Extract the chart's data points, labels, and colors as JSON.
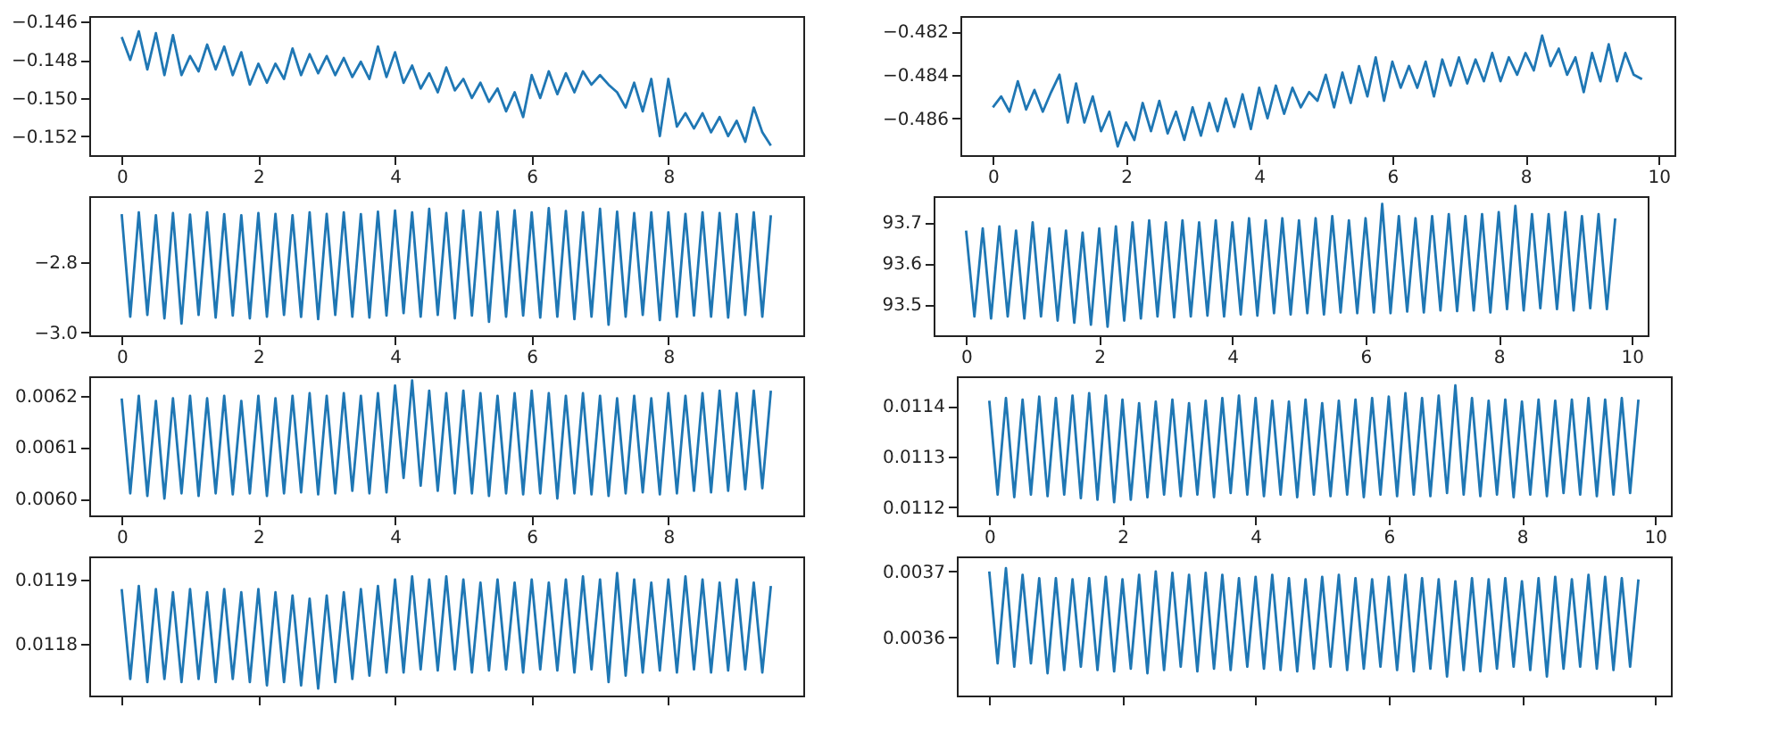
{
  "chart_data": [
    {
      "type": "line",
      "x": [
        0,
        0.125,
        0.25,
        0.375,
        0.5,
        0.625,
        0.75,
        0.875,
        1,
        1.125,
        1.25,
        1.375,
        1.5,
        1.625,
        1.75,
        1.875,
        2,
        2.125,
        2.25,
        2.375,
        2.5,
        2.625,
        2.75,
        2.875,
        3,
        3.125,
        3.25,
        3.375,
        3.5,
        3.625,
        3.75,
        3.875,
        4,
        4.125,
        4.25,
        4.375,
        4.5,
        4.625,
        4.75,
        4.875,
        5,
        5.125,
        5.25,
        5.375,
        5.5,
        5.625,
        5.75,
        5.875,
        6,
        6.125,
        6.25,
        6.375,
        6.5,
        6.625,
        6.75,
        6.875,
        7,
        7.125,
        7.25,
        7.375,
        7.5,
        7.625,
        7.75,
        7.875,
        8,
        8.125,
        8.25,
        8.375,
        8.5,
        8.625,
        8.75,
        8.875,
        9,
        9.125,
        9.25,
        9.375,
        9.5
      ],
      "series": [
        {
          "color": "#1f77b4",
          "values": [
            -0.1468,
            -0.148,
            -0.1465,
            -0.1485,
            -0.1466,
            -0.1488,
            -0.1467,
            -0.1488,
            -0.1478,
            -0.1486,
            -0.1472,
            -0.1485,
            -0.1473,
            -0.1488,
            -0.1476,
            -0.1493,
            -0.1482,
            -0.1492,
            -0.1482,
            -0.149,
            -0.1474,
            -0.1488,
            -0.1477,
            -0.1487,
            -0.1478,
            -0.1488,
            -0.1479,
            -0.1489,
            -0.1481,
            -0.149,
            -0.1473,
            -0.1489,
            -0.1476,
            -0.1492,
            -0.1483,
            -0.1495,
            -0.1487,
            -0.1497,
            -0.1484,
            -0.1496,
            -0.149,
            -0.15,
            -0.1492,
            -0.1502,
            -0.1495,
            -0.1507,
            -0.1497,
            -0.151,
            -0.1488,
            -0.15,
            -0.1486,
            -0.1498,
            -0.1487,
            -0.1497,
            -0.1486,
            -0.1493,
            -0.1488,
            -0.1493,
            -0.1497,
            -0.1505,
            -0.1492,
            -0.1507,
            -0.149,
            -0.152,
            -0.149,
            -0.1515,
            -0.1508,
            -0.1516,
            -0.1508,
            -0.1518,
            -0.151,
            -0.152,
            -0.1512,
            -0.1523,
            -0.1505,
            -0.1518,
            -0.1525
          ]
        }
      ],
      "xlim": [
        -0.475,
        9.975
      ],
      "ylim": [
        -0.153,
        -0.1457
      ],
      "xticks": [
        0,
        2,
        4,
        6,
        8
      ],
      "yticks": [
        {
          "value": -0.146,
          "label": "−0.146"
        },
        {
          "value": -0.148,
          "label": "−0.148"
        },
        {
          "value": -0.15,
          "label": "−0.150"
        },
        {
          "value": -0.152,
          "label": "−0.152"
        }
      ]
    },
    {
      "type": "line",
      "x": [
        0,
        0.125,
        0.25,
        0.375,
        0.5,
        0.625,
        0.75,
        0.875,
        1,
        1.125,
        1.25,
        1.375,
        1.5,
        1.625,
        1.75,
        1.875,
        2,
        2.125,
        2.25,
        2.375,
        2.5,
        2.625,
        2.75,
        2.875,
        3,
        3.125,
        3.25,
        3.375,
        3.5,
        3.625,
        3.75,
        3.875,
        4,
        4.125,
        4.25,
        4.375,
        4.5,
        4.625,
        4.75,
        4.875,
        5,
        5.125,
        5.25,
        5.375,
        5.5,
        5.625,
        5.75,
        5.875,
        6,
        6.125,
        6.25,
        6.375,
        6.5,
        6.625,
        6.75,
        6.875,
        7,
        7.125,
        7.25,
        7.375,
        7.5,
        7.625,
        7.75,
        7.875,
        8,
        8.125,
        8.25,
        8.375,
        8.5,
        8.625,
        8.75,
        8.875,
        9,
        9.125,
        9.25,
        9.375,
        9.5,
        9.625,
        9.75
      ],
      "series": [
        {
          "color": "#1f77b4",
          "values": [
            -0.4855,
            -0.485,
            -0.4857,
            -0.4843,
            -0.4856,
            -0.4847,
            -0.4857,
            -0.4848,
            -0.484,
            -0.4862,
            -0.4844,
            -0.4862,
            -0.485,
            -0.4866,
            -0.4857,
            -0.4873,
            -0.4862,
            -0.487,
            -0.4853,
            -0.4866,
            -0.4852,
            -0.4867,
            -0.4857,
            -0.487,
            -0.4855,
            -0.4868,
            -0.4853,
            -0.4866,
            -0.4851,
            -0.4864,
            -0.4849,
            -0.4865,
            -0.4846,
            -0.486,
            -0.4845,
            -0.4858,
            -0.4846,
            -0.4855,
            -0.4848,
            -0.4852,
            -0.484,
            -0.4855,
            -0.4839,
            -0.4853,
            -0.4836,
            -0.485,
            -0.4832,
            -0.4852,
            -0.4834,
            -0.4846,
            -0.4836,
            -0.4846,
            -0.4834,
            -0.485,
            -0.4833,
            -0.4845,
            -0.4832,
            -0.4844,
            -0.4833,
            -0.4843,
            -0.483,
            -0.4843,
            -0.4832,
            -0.484,
            -0.483,
            -0.4838,
            -0.4822,
            -0.4836,
            -0.4828,
            -0.484,
            -0.4832,
            -0.4848,
            -0.483,
            -0.4843,
            -0.4826,
            -0.4843,
            -0.483,
            -0.484,
            -0.4842
          ]
        }
      ],
      "xlim": [
        -0.4875,
        10.2375
      ],
      "ylim": [
        -0.4877,
        -0.4813
      ],
      "xticks": [
        0,
        2,
        4,
        6,
        8,
        10
      ],
      "yticks": [
        {
          "value": -0.482,
          "label": "−0.482"
        },
        {
          "value": -0.484,
          "label": "−0.484"
        },
        {
          "value": -0.486,
          "label": "−0.486"
        }
      ]
    },
    {
      "type": "line",
      "x": [
        0,
        0.125,
        0.25,
        0.375,
        0.5,
        0.625,
        0.75,
        0.875,
        1,
        1.125,
        1.25,
        1.375,
        1.5,
        1.625,
        1.75,
        1.875,
        2,
        2.125,
        2.25,
        2.375,
        2.5,
        2.625,
        2.75,
        2.875,
        3,
        3.125,
        3.25,
        3.375,
        3.5,
        3.625,
        3.75,
        3.875,
        4,
        4.125,
        4.25,
        4.375,
        4.5,
        4.625,
        4.75,
        4.875,
        5,
        5.125,
        5.25,
        5.375,
        5.5,
        5.625,
        5.75,
        5.875,
        6,
        6.125,
        6.25,
        6.375,
        6.5,
        6.625,
        6.75,
        6.875,
        7,
        7.125,
        7.25,
        7.375,
        7.5,
        7.625,
        7.75,
        7.875,
        8,
        8.125,
        8.25,
        8.375,
        8.5,
        8.625,
        8.75,
        8.875,
        9,
        9.125,
        9.25,
        9.375,
        9.5
      ],
      "series": [
        {
          "color": "#1f77b4",
          "values": [
            -2.665,
            -2.955,
            -2.66,
            -2.95,
            -2.668,
            -2.96,
            -2.662,
            -2.975,
            -2.666,
            -2.95,
            -2.66,
            -2.958,
            -2.665,
            -2.952,
            -2.668,
            -2.96,
            -2.662,
            -2.955,
            -2.664,
            -2.95,
            -2.668,
            -2.956,
            -2.66,
            -2.962,
            -2.664,
            -2.95,
            -2.66,
            -2.955,
            -2.665,
            -2.958,
            -2.658,
            -2.952,
            -2.655,
            -2.945,
            -2.66,
            -2.955,
            -2.65,
            -2.95,
            -2.662,
            -2.96,
            -2.655,
            -2.952,
            -2.66,
            -2.97,
            -2.658,
            -2.955,
            -2.654,
            -2.952,
            -2.66,
            -2.958,
            -2.648,
            -2.955,
            -2.656,
            -2.962,
            -2.66,
            -2.955,
            -2.65,
            -2.978,
            -2.658,
            -2.955,
            -2.662,
            -2.95,
            -2.66,
            -2.965,
            -2.66,
            -2.955,
            -2.664,
            -2.952,
            -2.66,
            -2.955,
            -2.662,
            -2.958,
            -2.665,
            -2.95,
            -2.66,
            -2.955,
            -2.668
          ]
        }
      ],
      "xlim": [
        -0.475,
        9.975
      ],
      "ylim": [
        -3.008,
        -2.614
      ],
      "xticks": [
        0,
        2,
        4,
        6,
        8
      ],
      "yticks": [
        {
          "value": -2.8,
          "label": "−2.8"
        },
        {
          "value": -3.0,
          "label": "−3.0"
        }
      ]
    },
    {
      "type": "line",
      "x": [
        0,
        0.125,
        0.25,
        0.375,
        0.5,
        0.625,
        0.75,
        0.875,
        1,
        1.125,
        1.25,
        1.375,
        1.5,
        1.625,
        1.75,
        1.875,
        2,
        2.125,
        2.25,
        2.375,
        2.5,
        2.625,
        2.75,
        2.875,
        3,
        3.125,
        3.25,
        3.375,
        3.5,
        3.625,
        3.75,
        3.875,
        4,
        4.125,
        4.25,
        4.375,
        4.5,
        4.625,
        4.75,
        4.875,
        5,
        5.125,
        5.25,
        5.375,
        5.5,
        5.625,
        5.75,
        5.875,
        6,
        6.125,
        6.25,
        6.375,
        6.5,
        6.625,
        6.75,
        6.875,
        7,
        7.125,
        7.25,
        7.375,
        7.5,
        7.625,
        7.75,
        7.875,
        8,
        8.125,
        8.25,
        8.375,
        8.5,
        8.625,
        8.75,
        8.875,
        9,
        9.125,
        9.25,
        9.375,
        9.5,
        9.625,
        9.75
      ],
      "series": [
        {
          "color": "#1f77b4",
          "values": [
            93.68,
            93.47,
            93.685,
            93.465,
            93.69,
            93.47,
            93.68,
            93.465,
            93.7,
            93.47,
            93.685,
            93.46,
            93.68,
            93.455,
            93.675,
            93.45,
            93.685,
            93.445,
            93.69,
            93.46,
            93.7,
            93.465,
            93.705,
            93.47,
            93.7,
            93.468,
            93.705,
            93.47,
            93.7,
            93.472,
            93.705,
            93.47,
            93.7,
            93.475,
            93.71,
            93.472,
            93.705,
            93.478,
            93.71,
            93.475,
            93.705,
            93.478,
            93.71,
            93.475,
            93.715,
            93.48,
            93.705,
            93.478,
            93.71,
            93.48,
            93.745,
            93.478,
            93.715,
            93.482,
            93.71,
            93.48,
            93.715,
            93.485,
            93.72,
            93.483,
            93.715,
            93.485,
            93.72,
            93.48,
            93.725,
            93.488,
            93.74,
            93.485,
            93.72,
            93.49,
            93.72,
            93.488,
            93.725,
            93.485,
            93.715,
            93.49,
            93.72,
            93.488,
            93.71
          ]
        }
      ],
      "xlim": [
        -0.4875,
        10.2375
      ],
      "ylim": [
        93.424,
        93.764
      ],
      "xticks": [
        0,
        2,
        4,
        6,
        8,
        10
      ],
      "yticks": [
        93.5,
        93.6,
        93.7
      ]
    },
    {
      "type": "line",
      "x": [
        0,
        0.125,
        0.25,
        0.375,
        0.5,
        0.625,
        0.75,
        0.875,
        1,
        1.125,
        1.25,
        1.375,
        1.5,
        1.625,
        1.75,
        1.875,
        2,
        2.125,
        2.25,
        2.375,
        2.5,
        2.625,
        2.75,
        2.875,
        3,
        3.125,
        3.25,
        3.375,
        3.5,
        3.625,
        3.75,
        3.875,
        4,
        4.125,
        4.25,
        4.375,
        4.5,
        4.625,
        4.75,
        4.875,
        5,
        5.125,
        5.25,
        5.375,
        5.5,
        5.625,
        5.75,
        5.875,
        6,
        6.125,
        6.25,
        6.375,
        6.5,
        6.625,
        6.75,
        6.875,
        7,
        7.125,
        7.25,
        7.375,
        7.5,
        7.625,
        7.75,
        7.875,
        8,
        8.125,
        8.25,
        8.375,
        8.5,
        8.625,
        8.75,
        8.875,
        9,
        9.125,
        9.25,
        9.375,
        9.5
      ],
      "series": [
        {
          "color": "#1f77b4",
          "values": [
            0.006195,
            0.00601,
            0.0062,
            0.006005,
            0.00619,
            0.006,
            0.006195,
            0.00601,
            0.0062,
            0.006005,
            0.006195,
            0.00601,
            0.0062,
            0.006008,
            0.00619,
            0.00601,
            0.0062,
            0.006005,
            0.006195,
            0.00601,
            0.0062,
            0.006012,
            0.006205,
            0.006008,
            0.0062,
            0.00601,
            0.006205,
            0.006015,
            0.0062,
            0.00601,
            0.006205,
            0.006012,
            0.00622,
            0.00604,
            0.00623,
            0.006025,
            0.00621,
            0.006015,
            0.006205,
            0.00601,
            0.00621,
            0.00601,
            0.006205,
            0.006005,
            0.0062,
            0.00601,
            0.006205,
            0.006008,
            0.00621,
            0.00601,
            0.006205,
            0.006,
            0.0062,
            0.00601,
            0.006205,
            0.006008,
            0.0062,
            0.006005,
            0.006195,
            0.00601,
            0.0062,
            0.006012,
            0.006195,
            0.006008,
            0.006205,
            0.00601,
            0.0062,
            0.006015,
            0.006205,
            0.006012,
            0.00621,
            0.006015,
            0.006205,
            0.006018,
            0.00621,
            0.00602,
            0.00621
          ]
        }
      ],
      "xlim": [
        -0.475,
        9.975
      ],
      "ylim": [
        0.005967,
        0.006238
      ],
      "xticks": [
        0,
        2,
        4,
        6,
        8
      ],
      "yticks": [
        {
          "value": 0.006,
          "label": "0.0060"
        },
        {
          "value": 0.0061,
          "label": "0.0061"
        },
        {
          "value": 0.0062,
          "label": "0.0062"
        }
      ]
    },
    {
      "type": "line",
      "x": [
        0,
        0.125,
        0.25,
        0.375,
        0.5,
        0.625,
        0.75,
        0.875,
        1,
        1.125,
        1.25,
        1.375,
        1.5,
        1.625,
        1.75,
        1.875,
        2,
        2.125,
        2.25,
        2.375,
        2.5,
        2.625,
        2.75,
        2.875,
        3,
        3.125,
        3.25,
        3.375,
        3.5,
        3.625,
        3.75,
        3.875,
        4,
        4.125,
        4.25,
        4.375,
        4.5,
        4.625,
        4.75,
        4.875,
        5,
        5.125,
        5.25,
        5.375,
        5.5,
        5.625,
        5.75,
        5.875,
        6,
        6.125,
        6.25,
        6.375,
        6.5,
        6.625,
        6.75,
        6.875,
        7,
        7.125,
        7.25,
        7.375,
        7.5,
        7.625,
        7.75,
        7.875,
        8,
        8.125,
        8.25,
        8.375,
        8.5,
        8.625,
        8.75,
        8.875,
        9,
        9.125,
        9.25,
        9.375,
        9.5,
        9.625,
        9.75
      ],
      "series": [
        {
          "color": "#1f77b4",
          "values": [
            0.01141,
            0.011225,
            0.011415,
            0.01122,
            0.011412,
            0.011225,
            0.011418,
            0.011222,
            0.011415,
            0.011225,
            0.01142,
            0.011218,
            0.011425,
            0.011215,
            0.01142,
            0.01121,
            0.011412,
            0.011215,
            0.011405,
            0.01122,
            0.011408,
            0.011225,
            0.011412,
            0.011222,
            0.011405,
            0.011225,
            0.01141,
            0.01122,
            0.011415,
            0.011228,
            0.01142,
            0.011225,
            0.011415,
            0.011222,
            0.01141,
            0.011225,
            0.011408,
            0.01122,
            0.011412,
            0.011225,
            0.011405,
            0.011222,
            0.01141,
            0.011225,
            0.011412,
            0.01122,
            0.011415,
            0.011225,
            0.011418,
            0.011222,
            0.011425,
            0.011225,
            0.011415,
            0.011222,
            0.01142,
            0.011228,
            0.01144,
            0.011225,
            0.011415,
            0.011222,
            0.01141,
            0.011225,
            0.011412,
            0.01122,
            0.011408,
            0.011225,
            0.011412,
            0.011222,
            0.01141,
            0.011228,
            0.011412,
            0.011225,
            0.011415,
            0.011222,
            0.011412,
            0.011225,
            0.011415,
            0.011228,
            0.011412
          ]
        }
      ],
      "xlim": [
        -0.4875,
        10.2375
      ],
      "ylim": [
        0.011184,
        0.011458
      ],
      "xticks": [
        0,
        2,
        4,
        6,
        8,
        10
      ],
      "yticks": [
        0.0112,
        0.0113,
        0.0114
      ]
    },
    {
      "type": "line",
      "x": [
        0,
        0.125,
        0.25,
        0.375,
        0.5,
        0.625,
        0.75,
        0.875,
        1,
        1.125,
        1.25,
        1.375,
        1.5,
        1.625,
        1.75,
        1.875,
        2,
        2.125,
        2.25,
        2.375,
        2.5,
        2.625,
        2.75,
        2.875,
        3,
        3.125,
        3.25,
        3.375,
        3.5,
        3.625,
        3.75,
        3.875,
        4,
        4.125,
        4.25,
        4.375,
        4.5,
        4.625,
        4.75,
        4.875,
        5,
        5.125,
        5.25,
        5.375,
        5.5,
        5.625,
        5.75,
        5.875,
        6,
        6.125,
        6.25,
        6.375,
        6.5,
        6.625,
        6.75,
        6.875,
        7,
        7.125,
        7.25,
        7.375,
        7.5,
        7.625,
        7.75,
        7.875,
        8,
        8.125,
        8.25,
        8.375,
        8.5,
        8.625,
        8.75,
        8.875,
        9,
        9.125,
        9.25,
        9.375,
        9.5
      ],
      "series": [
        {
          "color": "#1f77b4",
          "values": [
            0.011885,
            0.011745,
            0.01189,
            0.01174,
            0.011885,
            0.011745,
            0.01188,
            0.01174,
            0.011885,
            0.011745,
            0.01188,
            0.01174,
            0.011885,
            0.011745,
            0.01188,
            0.01174,
            0.011885,
            0.011735,
            0.01188,
            0.01174,
            0.011875,
            0.011735,
            0.01187,
            0.01173,
            0.011875,
            0.01174,
            0.01188,
            0.011745,
            0.011885,
            0.01175,
            0.01189,
            0.011755,
            0.0119,
            0.011755,
            0.011905,
            0.01176,
            0.0119,
            0.011758,
            0.011905,
            0.01176,
            0.0119,
            0.011755,
            0.011895,
            0.011758,
            0.0119,
            0.01176,
            0.011895,
            0.011755,
            0.0119,
            0.01176,
            0.011895,
            0.011758,
            0.0119,
            0.011755,
            0.011905,
            0.01176,
            0.0119,
            0.01174,
            0.01191,
            0.01175,
            0.0119,
            0.011755,
            0.011895,
            0.011758,
            0.0119,
            0.011755,
            0.011905,
            0.01176,
            0.0119,
            0.011755,
            0.011895,
            0.011758,
            0.0119,
            0.01176,
            0.011895,
            0.011755,
            0.01189
          ]
        }
      ],
      "xlim": [
        -0.475,
        9.975
      ],
      "ylim": [
        0.011719,
        0.011936
      ],
      "xticks": [
        0,
        2,
        4,
        6,
        8
      ],
      "yticks": [
        0.0118,
        0.0119
      ],
      "tick_labels": "y"
    },
    {
      "type": "line",
      "x": [
        0,
        0.125,
        0.25,
        0.375,
        0.5,
        0.625,
        0.75,
        0.875,
        1,
        1.125,
        1.25,
        1.375,
        1.5,
        1.625,
        1.75,
        1.875,
        2,
        2.125,
        2.25,
        2.375,
        2.5,
        2.625,
        2.75,
        2.875,
        3,
        3.125,
        3.25,
        3.375,
        3.5,
        3.625,
        3.75,
        3.875,
        4,
        4.125,
        4.25,
        4.375,
        4.5,
        4.625,
        4.75,
        4.875,
        5,
        5.125,
        5.25,
        5.375,
        5.5,
        5.625,
        5.75,
        5.875,
        6,
        6.125,
        6.25,
        6.375,
        6.5,
        6.625,
        6.75,
        6.875,
        7,
        7.125,
        7.25,
        7.375,
        7.5,
        7.625,
        7.75,
        7.875,
        8,
        8.125,
        8.25,
        8.375,
        8.5,
        8.625,
        8.75,
        8.875,
        9,
        9.125,
        9.25,
        9.375,
        9.5,
        9.625,
        9.75
      ],
      "series": [
        {
          "color": "#1f77b4",
          "values": [
            0.0037,
            0.00356,
            0.003705,
            0.003555,
            0.003695,
            0.00356,
            0.00369,
            0.003545,
            0.00369,
            0.00355,
            0.003688,
            0.003555,
            0.00369,
            0.00355,
            0.003692,
            0.003548,
            0.003688,
            0.003552,
            0.003695,
            0.003545,
            0.0037,
            0.00355,
            0.003698,
            0.003555,
            0.003695,
            0.003548,
            0.003698,
            0.003552,
            0.003695,
            0.00355,
            0.00369,
            0.003555,
            0.003692,
            0.003552,
            0.003695,
            0.00355,
            0.00369,
            0.003548,
            0.003688,
            0.003552,
            0.003692,
            0.003555,
            0.003695,
            0.00355,
            0.00369,
            0.003552,
            0.003688,
            0.003555,
            0.003692,
            0.00355,
            0.003695,
            0.003548,
            0.00369,
            0.003552,
            0.003688,
            0.00354,
            0.003685,
            0.00355,
            0.00369,
            0.003548,
            0.003688,
            0.003552,
            0.00369,
            0.003555,
            0.003685,
            0.00355,
            0.00369,
            0.00354,
            0.003692,
            0.003552,
            0.003688,
            0.003555,
            0.003695,
            0.003552,
            0.003692,
            0.00355,
            0.00369,
            0.003555,
            0.003688
          ]
        }
      ],
      "xlim": [
        -0.4875,
        10.2375
      ],
      "ylim": [
        0.003511,
        0.003723
      ],
      "xticks": [
        0,
        2,
        4,
        6,
        8,
        10
      ],
      "yticks": [
        0.0036,
        0.0037
      ],
      "tick_labels": "y"
    }
  ]
}
